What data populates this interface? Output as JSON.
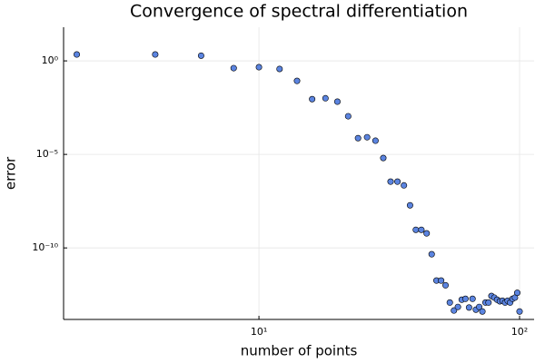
{
  "chart_data": {
    "type": "scatter",
    "title": "Convergence of spectral differentiation",
    "xlabel": "number of points",
    "ylabel": "error",
    "xscale": "log",
    "yscale": "log",
    "grid": true,
    "color": "#5b84e0",
    "x": [
      2,
      4,
      6,
      8,
      10,
      12,
      14,
      16,
      18,
      20,
      22,
      24,
      26,
      28,
      30,
      32,
      34,
      36,
      38,
      40,
      42,
      44,
      46,
      48,
      50,
      52,
      54,
      56,
      58,
      60,
      62,
      64,
      66,
      68,
      70,
      72,
      74,
      76,
      78,
      80,
      82,
      84,
      86,
      88,
      90,
      92,
      94,
      96,
      98,
      100
    ],
    "values": [
      2.2,
      2.2,
      1.9,
      0.41,
      0.46,
      0.37,
      0.085,
      0.009,
      0.01,
      0.0066,
      0.0011,
      7.4e-05,
      8.3e-05,
      5.4e-05,
      6.4e-06,
      3.5e-07,
      3.5e-07,
      2.2e-07,
      1.9e-08,
      9.3e-10,
      9.3e-10,
      6e-10,
      4.6e-11,
      1.8e-12,
      1.8e-12,
      1e-12,
      1.2e-13,
      4.5e-14,
      7e-14,
      1.7e-13,
      1.9e-13,
      6.5e-14,
      1.9e-13,
      5e-14,
      7e-14,
      4e-14,
      1.2e-13,
      1.2e-13,
      2.7e-13,
      2.2e-13,
      1.7e-13,
      1.4e-13,
      1.5e-13,
      1.2e-13,
      1.5e-13,
      1.2e-13,
      1.9e-13,
      2.2e-13,
      4e-13,
      4e-14
    ],
    "xlim": [
      1.78,
      113.7
    ],
    "ylim": [
      1.5e-14,
      63
    ],
    "xticks": [
      {
        "value": 10,
        "label": "10¹"
      },
      {
        "value": 100,
        "label": "10²"
      }
    ],
    "yticks": [
      {
        "value": 1e-10,
        "label": "10⁻¹⁰"
      },
      {
        "value": 1e-05,
        "label": "10⁻⁵"
      },
      {
        "value": 1,
        "label": "10⁰"
      }
    ]
  }
}
